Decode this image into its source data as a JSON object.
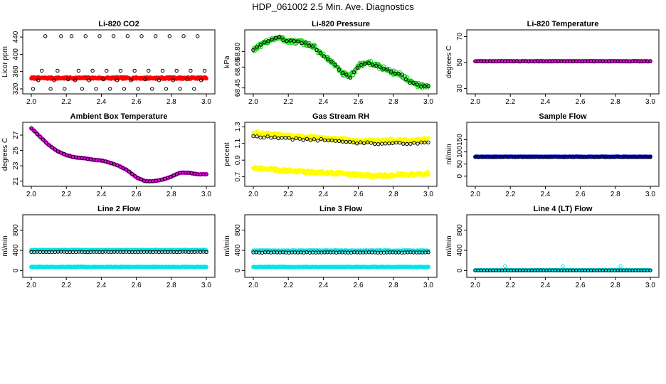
{
  "figure": {
    "title": "HDP_061002  2.5 Min. Ave. Diagnostics"
  },
  "chart_data": [
    {
      "id": "co2",
      "type": "scatter",
      "title": "Li-820 CO2",
      "xlabel": "",
      "ylabel": "Licor ppm",
      "xlim": [
        2.0,
        3.0
      ],
      "ylim": [
        315,
        450
      ],
      "xticks": [
        "2.0",
        "2.2",
        "2.4",
        "2.6",
        "2.8",
        "3.0"
      ],
      "yticks": [
        "320",
        "360",
        "400",
        "440"
      ],
      "series": [
        {
          "color": "#ff0000",
          "style": "band",
          "y": 345,
          "jitter": 2,
          "count": 240,
          "filled": true
        },
        {
          "color": "#000000",
          "style": "scatter",
          "filled": false,
          "points": [
            [
              2.01,
              320
            ],
            [
              2.04,
              340
            ],
            [
              2.06,
              362
            ],
            [
              2.08,
              442
            ],
            [
              2.11,
              320
            ],
            [
              2.13,
              340
            ],
            [
              2.15,
              362
            ],
            [
              2.17,
              442
            ],
            [
              2.19,
              320
            ],
            [
              2.21,
              342
            ],
            [
              2.23,
              442
            ],
            [
              2.25,
              340
            ],
            [
              2.27,
              362
            ],
            [
              2.29,
              320
            ],
            [
              2.31,
              442
            ],
            [
              2.33,
              340
            ],
            [
              2.35,
              362
            ],
            [
              2.37,
              320
            ],
            [
              2.39,
              442
            ],
            [
              2.41,
              342
            ],
            [
              2.43,
              362
            ],
            [
              2.45,
              320
            ],
            [
              2.47,
              442
            ],
            [
              2.49,
              340
            ],
            [
              2.51,
              362
            ],
            [
              2.53,
              320
            ],
            [
              2.55,
              442
            ],
            [
              2.57,
              340
            ],
            [
              2.59,
              362
            ],
            [
              2.61,
              320
            ],
            [
              2.63,
              442
            ],
            [
              2.65,
              342
            ],
            [
              2.67,
              362
            ],
            [
              2.69,
              320
            ],
            [
              2.71,
              442
            ],
            [
              2.73,
              340
            ],
            [
              2.75,
              362
            ],
            [
              2.77,
              320
            ],
            [
              2.79,
              442
            ],
            [
              2.81,
              340
            ],
            [
              2.83,
              362
            ],
            [
              2.85,
              320
            ],
            [
              2.87,
              442
            ],
            [
              2.89,
              342
            ],
            [
              2.91,
              362
            ],
            [
              2.93,
              320
            ],
            [
              2.95,
              442
            ],
            [
              2.97,
              340
            ],
            [
              2.99,
              362
            ]
          ]
        }
      ]
    },
    {
      "id": "pressure",
      "type": "scatter",
      "title": "Li-820 Pressure",
      "xlabel": "",
      "ylabel": "kPa",
      "xlim": [
        2.0,
        3.0
      ],
      "ylim": [
        68.42,
        68.98
      ],
      "xticks": [
        "2.0",
        "2.2",
        "2.4",
        "2.6",
        "2.8",
        "3.0"
      ],
      "yticks": [
        "68.45",
        "68.65",
        "68.80"
      ],
      "series": [
        {
          "color": "#00cc00",
          "style": "curve",
          "filled": false,
          "jitter": 0.025,
          "count": 260,
          "curve": [
            [
              2.0,
              68.82
            ],
            [
              2.05,
              68.86
            ],
            [
              2.1,
              68.92
            ],
            [
              2.15,
              68.93
            ],
            [
              2.2,
              68.9
            ],
            [
              2.25,
              68.89
            ],
            [
              2.3,
              68.88
            ],
            [
              2.35,
              68.84
            ],
            [
              2.4,
              68.76
            ],
            [
              2.45,
              68.7
            ],
            [
              2.5,
              68.6
            ],
            [
              2.55,
              68.55
            ],
            [
              2.6,
              68.66
            ],
            [
              2.65,
              68.7
            ],
            [
              2.7,
              68.67
            ],
            [
              2.75,
              68.63
            ],
            [
              2.8,
              68.6
            ],
            [
              2.85,
              68.57
            ],
            [
              2.9,
              68.5
            ],
            [
              2.95,
              68.47
            ],
            [
              3.0,
              68.47
            ]
          ]
        },
        {
          "color": "#000000",
          "style": "curve",
          "filled": false,
          "jitter": 0.01,
          "count": 48,
          "curve": [
            [
              2.0,
              68.82
            ],
            [
              2.05,
              68.86
            ],
            [
              2.1,
              68.92
            ],
            [
              2.15,
              68.93
            ],
            [
              2.2,
              68.9
            ],
            [
              2.25,
              68.89
            ],
            [
              2.3,
              68.88
            ],
            [
              2.35,
              68.84
            ],
            [
              2.4,
              68.76
            ],
            [
              2.45,
              68.7
            ],
            [
              2.5,
              68.6
            ],
            [
              2.55,
              68.55
            ],
            [
              2.6,
              68.66
            ],
            [
              2.65,
              68.7
            ],
            [
              2.7,
              68.67
            ],
            [
              2.75,
              68.63
            ],
            [
              2.8,
              68.6
            ],
            [
              2.85,
              68.57
            ],
            [
              2.9,
              68.5
            ],
            [
              2.95,
              68.47
            ],
            [
              3.0,
              68.47
            ]
          ]
        }
      ]
    },
    {
      "id": "temperature",
      "type": "scatter",
      "title": "Li-820 Temperature",
      "xlabel": "",
      "ylabel": "degrees C",
      "xlim": [
        2.0,
        3.0
      ],
      "ylim": [
        28,
        73
      ],
      "xticks": [
        "2.0",
        "2.2",
        "2.4",
        "2.6",
        "2.8",
        "3.0"
      ],
      "yticks": [
        "30",
        "50",
        "70"
      ],
      "series": [
        {
          "color": "#ff00ff",
          "style": "band",
          "y": 51,
          "jitter": 0.2,
          "count": 240,
          "filled": true
        },
        {
          "color": "#000000",
          "style": "band",
          "y": 51,
          "jitter": 0.1,
          "count": 60,
          "filled": false
        }
      ]
    },
    {
      "id": "ambient",
      "type": "scatter",
      "title": "Ambient Box Temperature",
      "xlabel": "",
      "ylabel": "degrees C",
      "xlim": [
        2.0,
        3.0
      ],
      "ylim": [
        20.7,
        28.3
      ],
      "xticks": [
        "2.0",
        "2.2",
        "2.4",
        "2.6",
        "2.8",
        "3.0"
      ],
      "yticks": [
        "21",
        "23",
        "25",
        "27"
      ],
      "series": [
        {
          "color": "#ff00ff",
          "style": "curve",
          "filled": true,
          "jitter": 0.03,
          "count": 240,
          "curve": [
            [
              2.0,
              27.9
            ],
            [
              2.05,
              26.8
            ],
            [
              2.1,
              25.7
            ],
            [
              2.15,
              24.9
            ],
            [
              2.2,
              24.4
            ],
            [
              2.25,
              24.1
            ],
            [
              2.3,
              24.0
            ],
            [
              2.35,
              23.8
            ],
            [
              2.4,
              23.7
            ],
            [
              2.45,
              23.4
            ],
            [
              2.5,
              23.0
            ],
            [
              2.55,
              22.4
            ],
            [
              2.6,
              21.5
            ],
            [
              2.65,
              21.0
            ],
            [
              2.7,
              21.0
            ],
            [
              2.75,
              21.2
            ],
            [
              2.8,
              21.6
            ],
            [
              2.85,
              22.1
            ],
            [
              2.9,
              22.1
            ],
            [
              2.95,
              21.9
            ],
            [
              3.0,
              21.9
            ]
          ]
        },
        {
          "color": "#000000",
          "style": "curve",
          "filled": false,
          "jitter": 0.02,
          "count": 60,
          "curve": [
            [
              2.0,
              27.9
            ],
            [
              2.05,
              26.8
            ],
            [
              2.1,
              25.7
            ],
            [
              2.15,
              24.9
            ],
            [
              2.2,
              24.4
            ],
            [
              2.25,
              24.1
            ],
            [
              2.3,
              24.0
            ],
            [
              2.35,
              23.8
            ],
            [
              2.4,
              23.7
            ],
            [
              2.45,
              23.4
            ],
            [
              2.5,
              23.0
            ],
            [
              2.55,
              22.4
            ],
            [
              2.6,
              21.5
            ],
            [
              2.65,
              21.0
            ],
            [
              2.7,
              21.0
            ],
            [
              2.75,
              21.2
            ],
            [
              2.8,
              21.6
            ],
            [
              2.85,
              22.1
            ],
            [
              2.9,
              22.1
            ],
            [
              2.95,
              21.9
            ],
            [
              3.0,
              21.9
            ]
          ]
        }
      ]
    },
    {
      "id": "rh",
      "type": "scatter",
      "title": "Gas Stream RH",
      "xlabel": "",
      "ylabel": "percent",
      "xlim": [
        2.0,
        3.0
      ],
      "ylim": [
        0.62,
        1.32
      ],
      "xticks": [
        "2.0",
        "2.2",
        "2.4",
        "2.6",
        "2.8",
        "3.0"
      ],
      "yticks": [
        "0.7",
        "0.9",
        "1.1",
        "1.3"
      ],
      "series": [
        {
          "color": "#ffff00",
          "style": "curve",
          "filled": true,
          "jitter": 0.02,
          "count": 240,
          "curve": [
            [
              2.0,
              1.23
            ],
            [
              2.1,
              1.21
            ],
            [
              2.2,
              1.19
            ],
            [
              2.3,
              1.18
            ],
            [
              2.4,
              1.16
            ],
            [
              2.5,
              1.15
            ],
            [
              2.6,
              1.13
            ],
            [
              2.7,
              1.13
            ],
            [
              2.8,
              1.14
            ],
            [
              2.9,
              1.13
            ],
            [
              3.0,
              1.15
            ]
          ]
        },
        {
          "color": "#ffff00",
          "style": "curve",
          "filled": true,
          "jitter": 0.02,
          "count": 240,
          "curve": [
            [
              2.0,
              0.81
            ],
            [
              2.1,
              0.79
            ],
            [
              2.2,
              0.77
            ],
            [
              2.3,
              0.76
            ],
            [
              2.4,
              0.75
            ],
            [
              2.5,
              0.74
            ],
            [
              2.6,
              0.72
            ],
            [
              2.7,
              0.71
            ],
            [
              2.8,
              0.72
            ],
            [
              2.9,
              0.73
            ],
            [
              3.0,
              0.74
            ]
          ]
        },
        {
          "color": "#000000",
          "style": "curve",
          "filled": false,
          "jitter": 0.012,
          "count": 50,
          "curve": [
            [
              2.0,
              1.19
            ],
            [
              2.1,
              1.17
            ],
            [
              2.2,
              1.16
            ],
            [
              2.3,
              1.15
            ],
            [
              2.4,
              1.14
            ],
            [
              2.5,
              1.13
            ],
            [
              2.6,
              1.11
            ],
            [
              2.7,
              1.1
            ],
            [
              2.8,
              1.11
            ],
            [
              2.9,
              1.1
            ],
            [
              3.0,
              1.11
            ]
          ]
        }
      ]
    },
    {
      "id": "sample",
      "type": "scatter",
      "title": "Sample Flow",
      "xlabel": "",
      "ylabel": "ml/min",
      "xlim": [
        2.0,
        3.0
      ],
      "ylim": [
        -30,
        210
      ],
      "xticks": [
        "2.0",
        "2.2",
        "2.4",
        "2.6",
        "2.8",
        "3.0"
      ],
      "yticks": [
        "0",
        "50",
        "100",
        "150"
      ],
      "series": [
        {
          "color": "#0000cc",
          "style": "band",
          "y": 80,
          "jitter": 1,
          "count": 240,
          "filled": true
        },
        {
          "color": "#000000",
          "style": "band",
          "y": 79,
          "jitter": 1,
          "count": 60,
          "filled": false
        }
      ]
    },
    {
      "id": "line2",
      "type": "scatter",
      "title": "Line 2 Flow",
      "xlabel": "",
      "ylabel": "ml/min",
      "xlim": [
        2.0,
        3.0
      ],
      "ylim": [
        -80,
        1050
      ],
      "xticks": [
        "2.0",
        "2.2",
        "2.4",
        "2.6",
        "2.8",
        "3.0"
      ],
      "yticks": [
        "0",
        "400",
        "800"
      ],
      "series": [
        {
          "color": "#00e5e5",
          "style": "band",
          "y": 405,
          "jitter": 6,
          "count": 240,
          "filled": true
        },
        {
          "color": "#00e5e5",
          "style": "band",
          "y": 70,
          "jitter": 6,
          "count": 240,
          "filled": true
        },
        {
          "color": "#000000",
          "style": "band",
          "y": 368,
          "jitter": 4,
          "count": 60,
          "filled": false
        }
      ]
    },
    {
      "id": "line3",
      "type": "scatter",
      "title": "Line 3 Flow",
      "xlabel": "",
      "ylabel": "ml/min",
      "xlim": [
        2.0,
        3.0
      ],
      "ylim": [
        -80,
        1050
      ],
      "xticks": [
        "2.0",
        "2.2",
        "2.4",
        "2.6",
        "2.8",
        "3.0"
      ],
      "yticks": [
        "0",
        "400",
        "800"
      ],
      "series": [
        {
          "color": "#00e5e5",
          "style": "band",
          "y": 395,
          "jitter": 6,
          "count": 240,
          "filled": true
        },
        {
          "color": "#00e5e5",
          "style": "band",
          "y": 70,
          "jitter": 6,
          "count": 240,
          "filled": true
        },
        {
          "color": "#000000",
          "style": "band",
          "y": 358,
          "jitter": 4,
          "count": 60,
          "filled": false
        }
      ]
    },
    {
      "id": "line4",
      "type": "scatter",
      "title": "Line 4 (LT) Flow",
      "xlabel": "",
      "ylabel": "ml/min",
      "xlim": [
        2.0,
        3.0
      ],
      "ylim": [
        -80,
        1050
      ],
      "xticks": [
        "2.0",
        "2.2",
        "2.4",
        "2.6",
        "2.8",
        "3.0"
      ],
      "yticks": [
        "0",
        "400",
        "800"
      ],
      "series": [
        {
          "color": "#00e5e5",
          "style": "band",
          "y": 4,
          "jitter": 2,
          "count": 240,
          "filled": true
        },
        {
          "color": "#000000",
          "style": "band",
          "y": 2,
          "jitter": 1,
          "count": 60,
          "filled": false
        },
        {
          "color": "#00e5e5",
          "style": "scatter",
          "filled": false,
          "points": [
            [
              2.17,
              85
            ],
            [
              2.5,
              85
            ],
            [
              2.83,
              85
            ]
          ]
        }
      ]
    }
  ]
}
